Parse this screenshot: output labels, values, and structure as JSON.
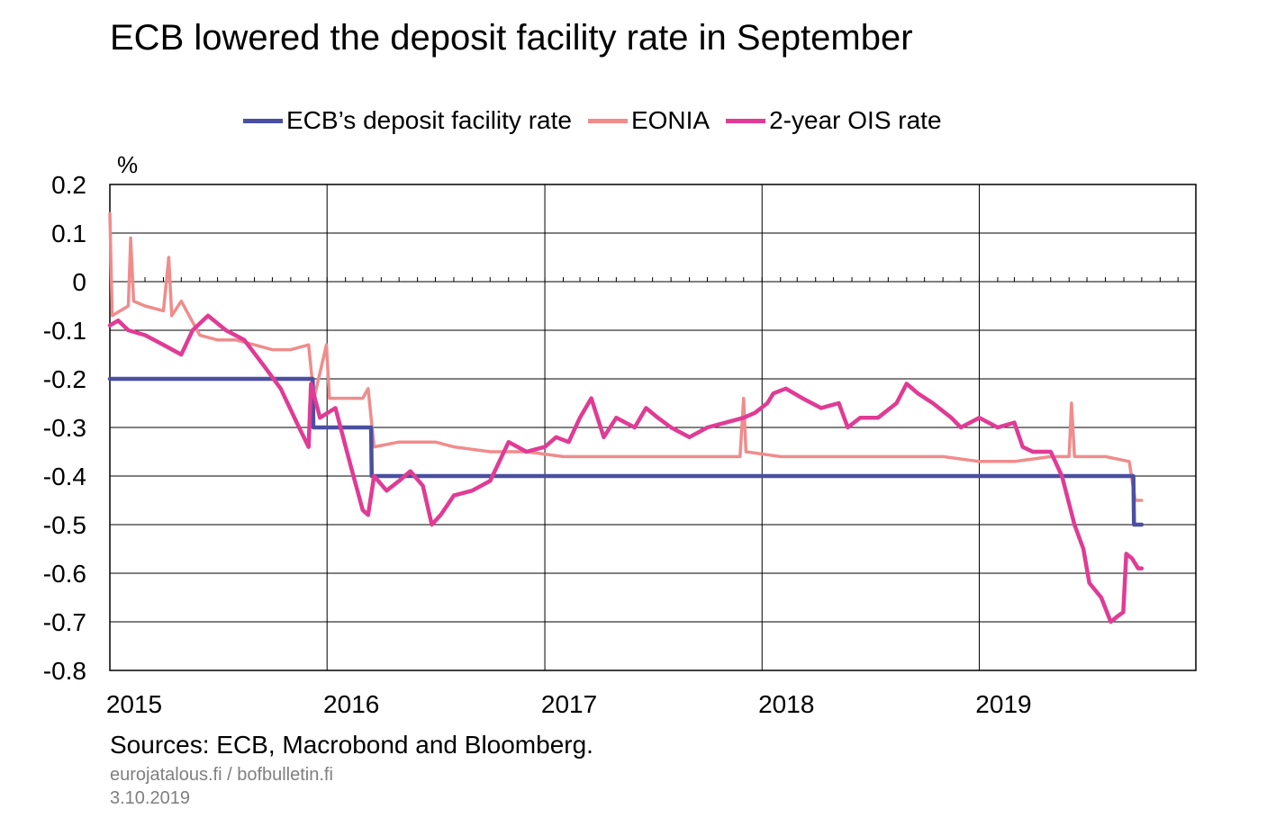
{
  "title": "ECB lowered the deposit facility rate in September",
  "unit": "%",
  "sources": "Sources: ECB, Macrobond and Bloomberg.",
  "site": "eurojatalous.fi  / bofbulletin.fi",
  "date": "3.10.2019",
  "chart_data": {
    "type": "line",
    "title": "ECB lowered the deposit facility rate in September",
    "ylabel": "%",
    "ylim": [
      -0.8,
      0.2
    ],
    "xlim": [
      "2015-01-01",
      "2019-12-31"
    ],
    "yticks": [
      "0.2",
      "0.1",
      "0",
      "-0.1",
      "-0.2",
      "-0.3",
      "-0.4",
      "-0.5",
      "-0.6",
      "-0.7",
      "-0.8"
    ],
    "xtick_labels": [
      "2015",
      "2016",
      "2017",
      "2018",
      "2019"
    ],
    "grid": true,
    "legend_position": "top",
    "series": [
      {
        "name": "ECB’s deposit facility rate",
        "color": "#4b4fa0",
        "points": [
          [
            "2015-01-01",
            -0.2
          ],
          [
            "2015-12-08",
            -0.2
          ],
          [
            "2015-12-09",
            -0.3
          ],
          [
            "2016-03-15",
            -0.3
          ],
          [
            "2016-03-16",
            -0.4
          ],
          [
            "2019-09-17",
            -0.4
          ],
          [
            "2019-09-18",
            -0.5
          ],
          [
            "2019-10-01",
            -0.5
          ]
        ]
      },
      {
        "name": "EONIA",
        "color": "#f08c8c",
        "points": [
          [
            "2015-01-01",
            0.14
          ],
          [
            "2015-01-05",
            -0.07
          ],
          [
            "2015-02-01",
            -0.05
          ],
          [
            "2015-02-05",
            0.09
          ],
          [
            "2015-02-10",
            -0.04
          ],
          [
            "2015-03-01",
            -0.05
          ],
          [
            "2015-04-01",
            -0.06
          ],
          [
            "2015-04-10",
            0.05
          ],
          [
            "2015-04-15",
            -0.07
          ],
          [
            "2015-05-01",
            -0.04
          ],
          [
            "2015-06-01",
            -0.11
          ],
          [
            "2015-07-01",
            -0.12
          ],
          [
            "2015-08-01",
            -0.12
          ],
          [
            "2015-09-01",
            -0.13
          ],
          [
            "2015-10-01",
            -0.14
          ],
          [
            "2015-11-01",
            -0.14
          ],
          [
            "2015-12-01",
            -0.13
          ],
          [
            "2015-12-10",
            -0.24
          ],
          [
            "2015-12-31",
            -0.13
          ],
          [
            "2016-01-05",
            -0.24
          ],
          [
            "2016-02-01",
            -0.24
          ],
          [
            "2016-03-01",
            -0.24
          ],
          [
            "2016-03-10",
            -0.22
          ],
          [
            "2016-03-20",
            -0.34
          ],
          [
            "2016-05-01",
            -0.33
          ],
          [
            "2016-07-01",
            -0.33
          ],
          [
            "2016-08-01",
            -0.34
          ],
          [
            "2016-10-01",
            -0.35
          ],
          [
            "2016-12-01",
            -0.35
          ],
          [
            "2017-02-01",
            -0.36
          ],
          [
            "2017-04-01",
            -0.36
          ],
          [
            "2017-06-01",
            -0.36
          ],
          [
            "2017-08-01",
            -0.36
          ],
          [
            "2017-10-01",
            -0.36
          ],
          [
            "2017-11-25",
            -0.36
          ],
          [
            "2017-12-01",
            -0.24
          ],
          [
            "2017-12-05",
            -0.35
          ],
          [
            "2018-02-01",
            -0.36
          ],
          [
            "2018-05-01",
            -0.36
          ],
          [
            "2018-08-01",
            -0.36
          ],
          [
            "2018-11-01",
            -0.36
          ],
          [
            "2019-01-01",
            -0.37
          ],
          [
            "2019-03-01",
            -0.37
          ],
          [
            "2019-05-01",
            -0.36
          ],
          [
            "2019-06-01",
            -0.36
          ],
          [
            "2019-06-05",
            -0.25
          ],
          [
            "2019-06-10",
            -0.36
          ],
          [
            "2019-08-01",
            -0.36
          ],
          [
            "2019-09-10",
            -0.37
          ],
          [
            "2019-09-20",
            -0.45
          ],
          [
            "2019-10-01",
            -0.45
          ]
        ]
      },
      {
        "name": "2-year OIS rate",
        "color": "#e03b95",
        "points": [
          [
            "2015-01-01",
            -0.09
          ],
          [
            "2015-01-15",
            -0.08
          ],
          [
            "2015-02-01",
            -0.1
          ],
          [
            "2015-03-01",
            -0.11
          ],
          [
            "2015-04-01",
            -0.13
          ],
          [
            "2015-05-01",
            -0.15
          ],
          [
            "2015-05-20",
            -0.1
          ],
          [
            "2015-06-15",
            -0.07
          ],
          [
            "2015-07-15",
            -0.1
          ],
          [
            "2015-08-15",
            -0.12
          ],
          [
            "2015-09-15",
            -0.17
          ],
          [
            "2015-10-15",
            -0.22
          ],
          [
            "2015-11-15",
            -0.3
          ],
          [
            "2015-12-01",
            -0.34
          ],
          [
            "2015-12-05",
            -0.21
          ],
          [
            "2015-12-20",
            -0.28
          ],
          [
            "2016-01-15",
            -0.26
          ],
          [
            "2016-02-10",
            -0.38
          ],
          [
            "2016-03-01",
            -0.47
          ],
          [
            "2016-03-10",
            -0.48
          ],
          [
            "2016-03-20",
            -0.4
          ],
          [
            "2016-04-10",
            -0.43
          ],
          [
            "2016-05-01",
            -0.41
          ],
          [
            "2016-05-20",
            -0.39
          ],
          [
            "2016-06-10",
            -0.42
          ],
          [
            "2016-06-25",
            -0.5
          ],
          [
            "2016-07-10",
            -0.48
          ],
          [
            "2016-08-01",
            -0.44
          ],
          [
            "2016-09-01",
            -0.43
          ],
          [
            "2016-10-01",
            -0.41
          ],
          [
            "2016-11-01",
            -0.33
          ],
          [
            "2016-12-01",
            -0.35
          ],
          [
            "2017-01-01",
            -0.34
          ],
          [
            "2017-01-20",
            -0.32
          ],
          [
            "2017-02-10",
            -0.33
          ],
          [
            "2017-03-01",
            -0.28
          ],
          [
            "2017-03-20",
            -0.24
          ],
          [
            "2017-04-10",
            -0.32
          ],
          [
            "2017-05-01",
            -0.28
          ],
          [
            "2017-06-01",
            -0.3
          ],
          [
            "2017-06-20",
            -0.26
          ],
          [
            "2017-07-10",
            -0.28
          ],
          [
            "2017-08-01",
            -0.3
          ],
          [
            "2017-09-01",
            -0.32
          ],
          [
            "2017-10-01",
            -0.3
          ],
          [
            "2017-11-01",
            -0.29
          ],
          [
            "2017-12-01",
            -0.28
          ],
          [
            "2017-12-20",
            -0.27
          ],
          [
            "2018-01-10",
            -0.25
          ],
          [
            "2018-01-20",
            -0.23
          ],
          [
            "2018-02-10",
            -0.22
          ],
          [
            "2018-03-10",
            -0.24
          ],
          [
            "2018-04-10",
            -0.26
          ],
          [
            "2018-05-10",
            -0.25
          ],
          [
            "2018-05-25",
            -0.3
          ],
          [
            "2018-06-15",
            -0.28
          ],
          [
            "2018-07-15",
            -0.28
          ],
          [
            "2018-08-15",
            -0.25
          ],
          [
            "2018-09-01",
            -0.21
          ],
          [
            "2018-09-20",
            -0.23
          ],
          [
            "2018-10-15",
            -0.25
          ],
          [
            "2018-11-15",
            -0.28
          ],
          [
            "2018-12-01",
            -0.3
          ],
          [
            "2019-01-01",
            -0.28
          ],
          [
            "2019-02-01",
            -0.3
          ],
          [
            "2019-03-01",
            -0.29
          ],
          [
            "2019-03-15",
            -0.34
          ],
          [
            "2019-04-01",
            -0.35
          ],
          [
            "2019-05-01",
            -0.35
          ],
          [
            "2019-05-20",
            -0.4
          ],
          [
            "2019-06-10",
            -0.5
          ],
          [
            "2019-06-25",
            -0.55
          ],
          [
            "2019-07-05",
            -0.62
          ],
          [
            "2019-07-25",
            -0.65
          ],
          [
            "2019-08-10",
            -0.7
          ],
          [
            "2019-08-20",
            -0.69
          ],
          [
            "2019-08-31",
            -0.68
          ],
          [
            "2019-09-05",
            -0.56
          ],
          [
            "2019-09-15",
            -0.57
          ],
          [
            "2019-09-25",
            -0.59
          ],
          [
            "2019-10-01",
            -0.59
          ]
        ]
      }
    ]
  }
}
